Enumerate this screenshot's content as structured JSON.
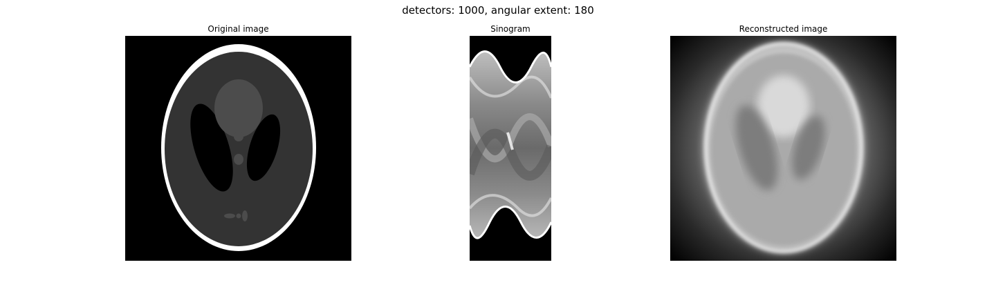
{
  "figure": {
    "title": "detectors: 1000, angular extent: 180"
  },
  "panels": [
    {
      "title": "Original image"
    },
    {
      "title": "Sinogram"
    },
    {
      "title": "Reconstructed image"
    }
  ]
}
